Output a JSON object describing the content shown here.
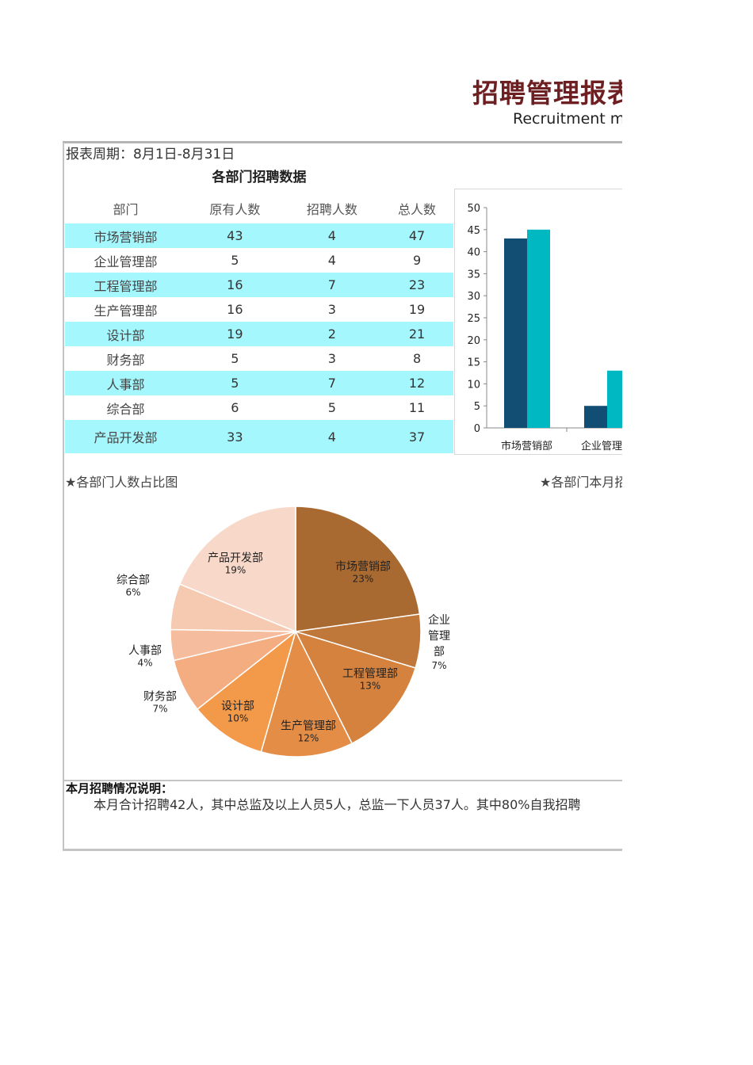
{
  "header": {
    "title": "招聘管理报表",
    "subtitle": "Recruitment management report"
  },
  "report_period": "报表周期：8月1日-8月31日",
  "table": {
    "title": "各部门招聘数据",
    "columns": [
      "部门",
      "原有人数",
      "招聘人数",
      "总人数"
    ],
    "rows": [
      [
        "市场营销部",
        "43",
        "4",
        "47"
      ],
      [
        "企业管理部",
        "5",
        "4",
        "9"
      ],
      [
        "工程管理部",
        "16",
        "7",
        "23"
      ],
      [
        "生产管理部",
        "16",
        "3",
        "19"
      ],
      [
        "设计部",
        "19",
        "2",
        "21"
      ],
      [
        "财务部",
        "5",
        "3",
        "8"
      ],
      [
        "人事部",
        "5",
        "7",
        "12"
      ],
      [
        "综合部",
        "6",
        "5",
        "11"
      ],
      [
        "产品开发部",
        "33",
        "4",
        "37"
      ]
    ],
    "row_highlight_color": "#a4f7fd"
  },
  "sections": {
    "pie_title": "★各部门人数占比图",
    "bar2_title": "★各部门本月招聘人数"
  },
  "note": {
    "title": "本月招聘情况说明：",
    "body": "本月合计招聘42人，其中总监及以上人员5人，总监一下人员37人。其中80%自我招聘"
  },
  "chart_data": [
    {
      "type": "bar",
      "categories": [
        "市场营销部",
        "企业管理部"
      ],
      "series": [
        {
          "values": [
            43,
            5
          ],
          "color": "#124e74"
        },
        {
          "values": [
            45,
            13
          ],
          "color": "#00b8c2"
        }
      ],
      "ylim": [
        0,
        50
      ],
      "yticks": [
        0,
        5,
        10,
        15,
        20,
        25,
        30,
        35,
        40,
        45,
        50
      ],
      "grid": false
    },
    {
      "type": "pie",
      "slices": [
        {
          "label": "市场营销部",
          "pct_label": "23%",
          "value": 23,
          "color": "#a96a32"
        },
        {
          "label": "企业管理部",
          "pct_label": "7%",
          "value": 7,
          "color": "#c0773a"
        },
        {
          "label": "工程管理部",
          "pct_label": "13%",
          "value": 13,
          "color": "#d4823e"
        },
        {
          "label": "生产管理部",
          "pct_label": "12%",
          "value": 12,
          "color": "#e38d47"
        },
        {
          "label": "设计部",
          "pct_label": "10%",
          "value": 10,
          "color": "#f39a4a"
        },
        {
          "label": "财务部",
          "pct_label": "7%",
          "value": 7,
          "color": "#f3ad80"
        },
        {
          "label": "人事部",
          "pct_label": "4%",
          "value": 4,
          "color": "#f5bd9d"
        },
        {
          "label": "综合部",
          "pct_label": "6%",
          "value": 6,
          "color": "#f6cab1"
        },
        {
          "label": "产品开发部",
          "pct_label": "19%",
          "value": 19,
          "color": "#f8d8c9"
        }
      ]
    }
  ]
}
